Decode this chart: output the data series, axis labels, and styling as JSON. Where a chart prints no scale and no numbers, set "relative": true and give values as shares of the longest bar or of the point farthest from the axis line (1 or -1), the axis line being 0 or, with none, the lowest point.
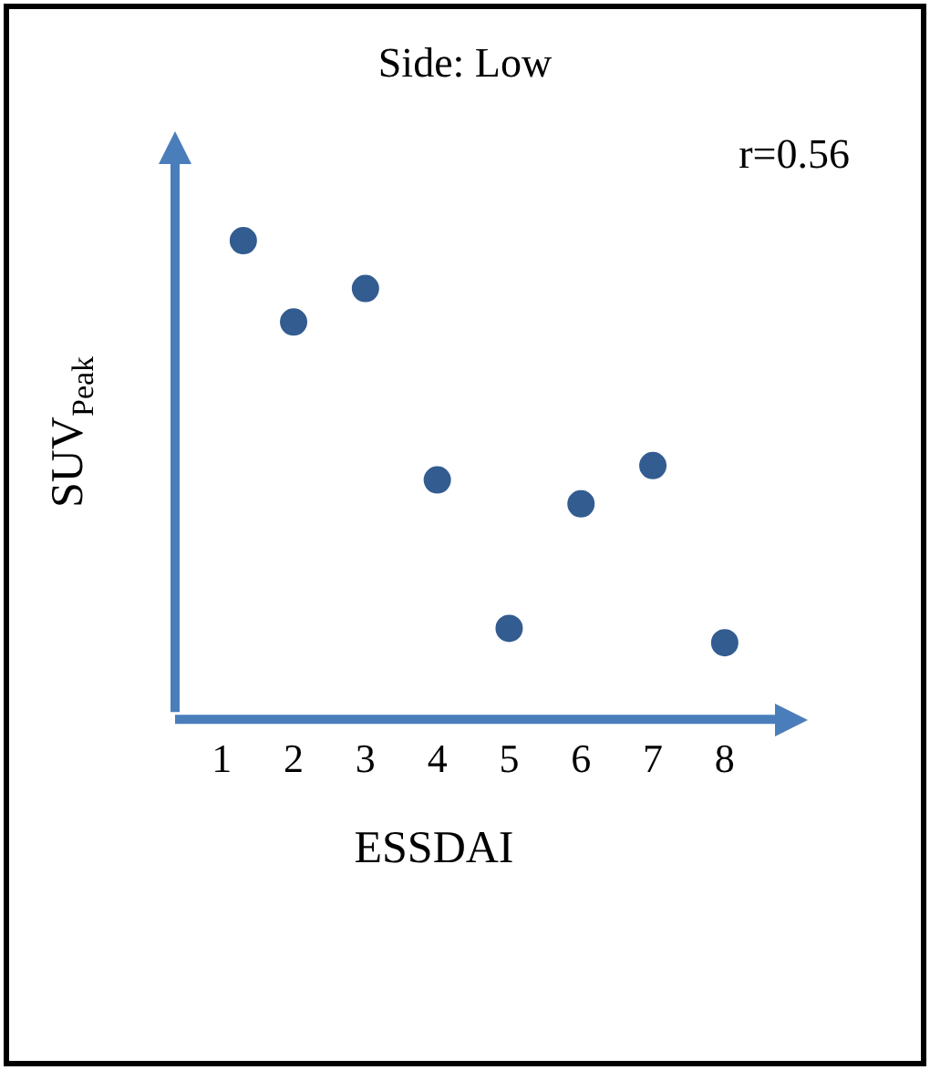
{
  "chart_data": {
    "type": "scatter",
    "title": "Side: Low",
    "xlabel": "ESSDAI",
    "ylabel": "SUV$_{Peak}$",
    "annotations": [
      "r=0.56"
    ],
    "x": [
      1.3,
      2,
      3,
      4,
      5,
      6,
      7,
      8
    ],
    "values": [
      1,
      0.83,
      0.9,
      0.5,
      0.19,
      0.45,
      0.53,
      0.16
    ],
    "relative": true,
    "color": "#335c91",
    "marker": "circle",
    "grid": false,
    "legend": false,
    "xlim": [
      0.35,
      8.7
    ],
    "xticks": [
      1,
      2,
      3,
      4,
      5,
      6,
      7,
      8
    ]
  }
}
